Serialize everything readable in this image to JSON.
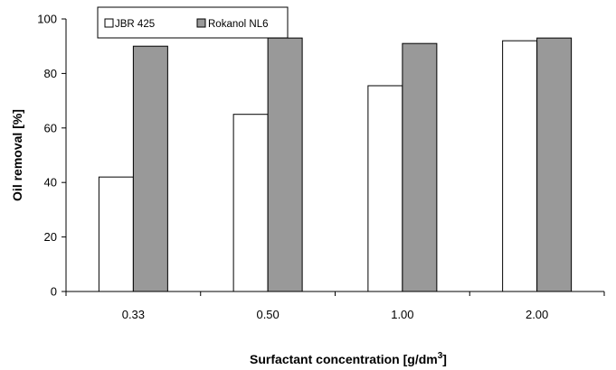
{
  "chart_data": {
    "type": "bar",
    "categories": [
      "0.33",
      "0.50",
      "1.00",
      "2.00"
    ],
    "series": [
      {
        "name": "JBR 425",
        "values": [
          42,
          65,
          75.5,
          92
        ],
        "fill": "#ffffff"
      },
      {
        "name": "Rokanol NL6",
        "values": [
          90,
          93,
          91,
          93
        ],
        "fill": "#999999"
      }
    ],
    "xlabel_main": "Surfactant concentration [g/dm",
    "xlabel_sup": "3",
    "xlabel_close": "]",
    "ylabel": "Oil removal [%]",
    "ylim": [
      0,
      100
    ],
    "yticks": [
      "0",
      "20",
      "40",
      "60",
      "80",
      "100"
    ],
    "grid": false,
    "legend_position": "top-left"
  }
}
